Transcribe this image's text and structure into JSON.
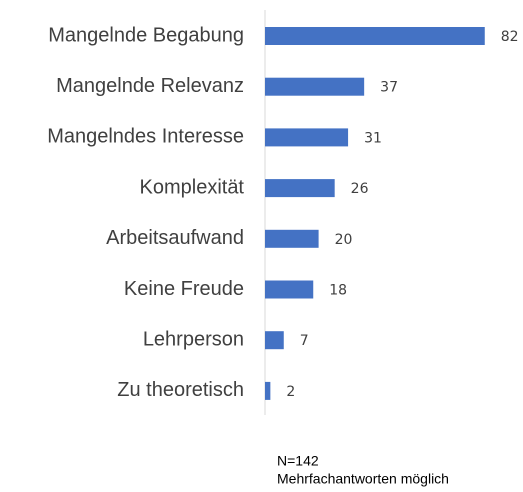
{
  "chart_data": {
    "type": "bar",
    "orientation": "horizontal",
    "categories": [
      "Mangelnde Begabung",
      "Mangelnde Relevanz",
      "Mangelndes Interesse",
      "Komplexität",
      "Arbeitsaufwand",
      "Keine Freude",
      "Lehrperson",
      "Zu theoretisch"
    ],
    "values": [
      82,
      37,
      31,
      26,
      20,
      18,
      7,
      2
    ],
    "color": "#4472c4",
    "annotations": [
      "N=142",
      "Mehrfachantworten möglich"
    ]
  }
}
